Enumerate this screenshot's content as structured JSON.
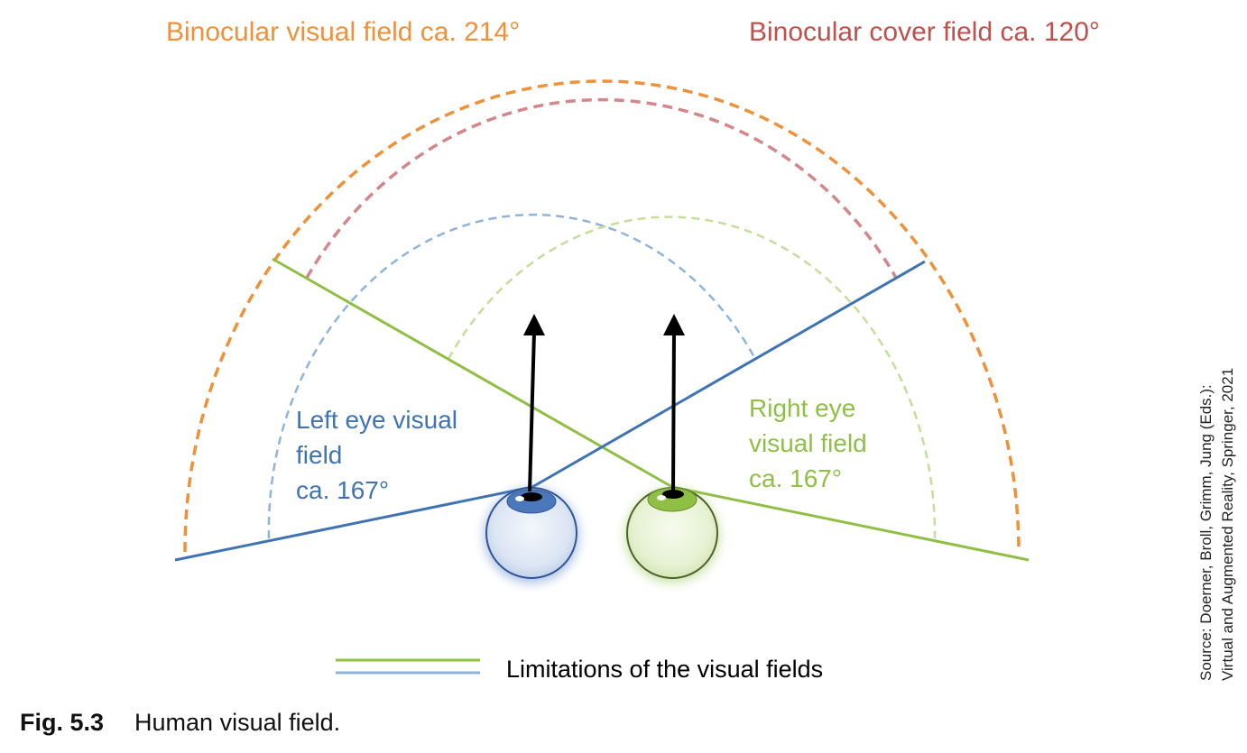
{
  "titles": {
    "binocular_visual_field": "Binocular visual field ca. 214°",
    "binocular_cover_field": "Binocular cover field ca. 120°"
  },
  "labels": {
    "left_eye": [
      "Left eye visual",
      "field",
      "ca. 167°"
    ],
    "right_eye": [
      "Right eye",
      "visual field",
      "ca. 167°"
    ]
  },
  "legend": {
    "label": "Limitations of the visual fields"
  },
  "source": {
    "line1": "Source: Doerner, Broll, Grimm, Jung (Eds.):",
    "line2": "Virtual and Augmented Reality, Springer, 2021"
  },
  "caption": {
    "figure_number": "Fig. 5.3",
    "text": "Human visual field."
  },
  "colors": {
    "orange": "#f0913a",
    "red": "#d4868a",
    "blue": "#3f73b3",
    "blue_dashed": "#8fb4db",
    "green": "#8fbf45",
    "green_dashed": "#c5de9a"
  }
}
